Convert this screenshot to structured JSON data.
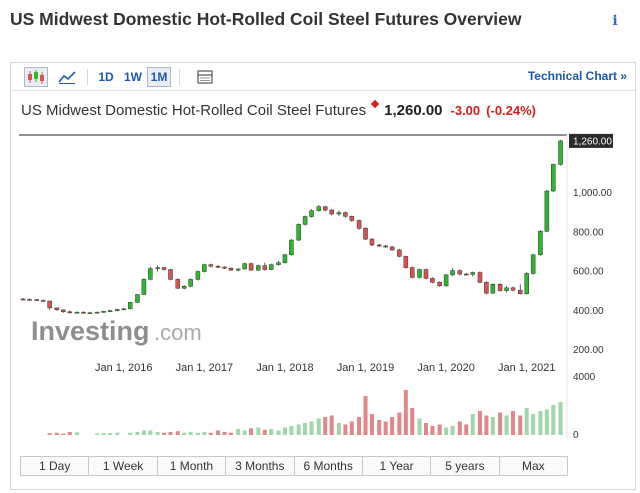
{
  "page": {
    "title": "US Midwest Domestic Hot-Rolled Coil Steel Futures Overview",
    "info_icon": "i"
  },
  "toolbar": {
    "candles_icon": "candlestick-chart-icon",
    "area_icon": "area-chart-icon",
    "intervals": [
      "1D",
      "1W",
      "1M"
    ],
    "active_interval": "1M",
    "panel_icon": "chart-panel-icon",
    "technical_link": "Technical Chart »"
  },
  "quote": {
    "name": "US Midwest Domestic Hot-Rolled Coil Steel Futures",
    "price": "1,260.00",
    "change": "-3.00",
    "change_pct": "(-0.24%)",
    "change_color": "#d91e18"
  },
  "watermark": {
    "brand": "Investing",
    "suffix": ".com"
  },
  "ranges": [
    "1 Day",
    "1 Week",
    "1 Month",
    "3 Months",
    "6 Months",
    "1 Year",
    "5 years",
    "Max"
  ],
  "colors": {
    "up": "#2eb82e",
    "down": "#d9534f",
    "vol_up": "#9fd6aa",
    "vol_down": "#e0878a",
    "link": "#1a5aa6"
  },
  "chart_data": {
    "type": "candlestick",
    "y_ticks": [
      "1,260.00",
      "1,000.00",
      "800.00",
      "600.00",
      "400.00",
      "200.00"
    ],
    "y_tick_values": [
      1260,
      1000,
      800,
      600,
      400,
      200
    ],
    "last_price_label": "1,260.00",
    "x_ticks": [
      "Jan 1, 2016",
      "Jan 1, 2017",
      "Jan 1, 2018",
      "Jan 1, 2019",
      "Jan 1, 2020",
      "Jan 1, 2021"
    ],
    "x_tick_years": [
      2016,
      2017,
      2018,
      2019,
      2020,
      2021
    ],
    "volume_ticks": [
      "4000",
      "0"
    ],
    "volume_max": 4000,
    "candles": [
      {
        "t": 2014.75,
        "o": 455,
        "h": 460,
        "l": 450,
        "c": 453,
        "v": 0
      },
      {
        "t": 2014.83,
        "o": 453,
        "h": 458,
        "l": 448,
        "c": 452,
        "v": 0
      },
      {
        "t": 2014.92,
        "o": 452,
        "h": 455,
        "l": 445,
        "c": 448,
        "v": 0
      },
      {
        "t": 2015.0,
        "o": 448,
        "h": 452,
        "l": 440,
        "c": 445,
        "v": 0
      },
      {
        "t": 2015.08,
        "o": 445,
        "h": 445,
        "l": 400,
        "c": 410,
        "v": 120
      },
      {
        "t": 2015.17,
        "o": 410,
        "h": 412,
        "l": 395,
        "c": 400,
        "v": 150
      },
      {
        "t": 2015.25,
        "o": 400,
        "h": 402,
        "l": 385,
        "c": 390,
        "v": 100
      },
      {
        "t": 2015.33,
        "o": 390,
        "h": 395,
        "l": 380,
        "c": 385,
        "v": 200
      },
      {
        "t": 2015.42,
        "o": 385,
        "h": 392,
        "l": 380,
        "c": 388,
        "v": 180
      },
      {
        "t": 2015.5,
        "o": 388,
        "h": 392,
        "l": 380,
        "c": 385,
        "v": 0
      },
      {
        "t": 2015.58,
        "o": 385,
        "h": 390,
        "l": 380,
        "c": 385,
        "v": 0
      },
      {
        "t": 2015.67,
        "o": 385,
        "h": 392,
        "l": 382,
        "c": 388,
        "v": 100
      },
      {
        "t": 2015.75,
        "o": 388,
        "h": 395,
        "l": 385,
        "c": 392,
        "v": 120
      },
      {
        "t": 2015.83,
        "o": 392,
        "h": 400,
        "l": 388,
        "c": 396,
        "v": 130
      },
      {
        "t": 2015.92,
        "o": 396,
        "h": 405,
        "l": 392,
        "c": 402,
        "v": 150
      },
      {
        "t": 2016.0,
        "o": 402,
        "h": 410,
        "l": 398,
        "c": 405,
        "v": 0
      },
      {
        "t": 2016.08,
        "o": 405,
        "h": 440,
        "l": 403,
        "c": 438,
        "v": 150
      },
      {
        "t": 2016.17,
        "o": 438,
        "h": 480,
        "l": 435,
        "c": 478,
        "v": 200
      },
      {
        "t": 2016.25,
        "o": 478,
        "h": 560,
        "l": 475,
        "c": 555,
        "v": 300
      },
      {
        "t": 2016.33,
        "o": 555,
        "h": 620,
        "l": 550,
        "c": 610,
        "v": 300
      },
      {
        "t": 2016.42,
        "o": 610,
        "h": 625,
        "l": 595,
        "c": 615,
        "v": 200
      },
      {
        "t": 2016.5,
        "o": 615,
        "h": 618,
        "l": 600,
        "c": 605,
        "v": 150
      },
      {
        "t": 2016.58,
        "o": 605,
        "h": 608,
        "l": 550,
        "c": 555,
        "v": 200
      },
      {
        "t": 2016.67,
        "o": 555,
        "h": 560,
        "l": 505,
        "c": 510,
        "v": 250
      },
      {
        "t": 2016.75,
        "o": 510,
        "h": 525,
        "l": 505,
        "c": 520,
        "v": 150
      },
      {
        "t": 2016.83,
        "o": 520,
        "h": 560,
        "l": 515,
        "c": 555,
        "v": 200
      },
      {
        "t": 2016.92,
        "o": 555,
        "h": 600,
        "l": 550,
        "c": 595,
        "v": 150
      },
      {
        "t": 2017.0,
        "o": 595,
        "h": 635,
        "l": 590,
        "c": 630,
        "v": 200
      },
      {
        "t": 2017.08,
        "o": 630,
        "h": 635,
        "l": 615,
        "c": 622,
        "v": 150
      },
      {
        "t": 2017.17,
        "o": 622,
        "h": 628,
        "l": 612,
        "c": 618,
        "v": 300
      },
      {
        "t": 2017.25,
        "o": 618,
        "h": 622,
        "l": 608,
        "c": 612,
        "v": 200
      },
      {
        "t": 2017.33,
        "o": 612,
        "h": 616,
        "l": 598,
        "c": 602,
        "v": 150
      },
      {
        "t": 2017.42,
        "o": 602,
        "h": 612,
        "l": 595,
        "c": 608,
        "v": 400
      },
      {
        "t": 2017.5,
        "o": 608,
        "h": 640,
        "l": 605,
        "c": 635,
        "v": 300
      },
      {
        "t": 2017.58,
        "o": 635,
        "h": 640,
        "l": 598,
        "c": 602,
        "v": 450
      },
      {
        "t": 2017.67,
        "o": 602,
        "h": 630,
        "l": 598,
        "c": 625,
        "v": 500
      },
      {
        "t": 2017.75,
        "o": 625,
        "h": 640,
        "l": 600,
        "c": 605,
        "v": 350
      },
      {
        "t": 2017.83,
        "o": 605,
        "h": 635,
        "l": 602,
        "c": 630,
        "v": 400
      },
      {
        "t": 2017.92,
        "o": 630,
        "h": 648,
        "l": 625,
        "c": 640,
        "v": 300
      },
      {
        "t": 2018.0,
        "o": 640,
        "h": 685,
        "l": 636,
        "c": 680,
        "v": 500
      },
      {
        "t": 2018.08,
        "o": 680,
        "h": 760,
        "l": 676,
        "c": 755,
        "v": 600
      },
      {
        "t": 2018.17,
        "o": 755,
        "h": 840,
        "l": 750,
        "c": 835,
        "v": 700
      },
      {
        "t": 2018.25,
        "o": 835,
        "h": 880,
        "l": 830,
        "c": 875,
        "v": 800
      },
      {
        "t": 2018.33,
        "o": 875,
        "h": 912,
        "l": 870,
        "c": 905,
        "v": 900
      },
      {
        "t": 2018.42,
        "o": 905,
        "h": 935,
        "l": 900,
        "c": 925,
        "v": 1100
      },
      {
        "t": 2018.5,
        "o": 925,
        "h": 930,
        "l": 900,
        "c": 908,
        "v": 1200
      },
      {
        "t": 2018.58,
        "o": 908,
        "h": 912,
        "l": 880,
        "c": 888,
        "v": 1300
      },
      {
        "t": 2018.67,
        "o": 888,
        "h": 905,
        "l": 878,
        "c": 895,
        "v": 800
      },
      {
        "t": 2018.75,
        "o": 895,
        "h": 900,
        "l": 870,
        "c": 876,
        "v": 700
      },
      {
        "t": 2018.83,
        "o": 876,
        "h": 880,
        "l": 848,
        "c": 855,
        "v": 900
      },
      {
        "t": 2018.92,
        "o": 855,
        "h": 860,
        "l": 808,
        "c": 815,
        "v": 1200
      },
      {
        "t": 2019.0,
        "o": 815,
        "h": 820,
        "l": 755,
        "c": 760,
        "v": 2600
      },
      {
        "t": 2019.08,
        "o": 760,
        "h": 765,
        "l": 725,
        "c": 730,
        "v": 1400
      },
      {
        "t": 2019.17,
        "o": 730,
        "h": 735,
        "l": 720,
        "c": 725,
        "v": 1000
      },
      {
        "t": 2019.25,
        "o": 725,
        "h": 730,
        "l": 715,
        "c": 720,
        "v": 900
      },
      {
        "t": 2019.33,
        "o": 720,
        "h": 725,
        "l": 700,
        "c": 705,
        "v": 1200
      },
      {
        "t": 2019.42,
        "o": 705,
        "h": 710,
        "l": 668,
        "c": 672,
        "v": 1500
      },
      {
        "t": 2019.5,
        "o": 672,
        "h": 676,
        "l": 610,
        "c": 615,
        "v": 3000
      },
      {
        "t": 2019.58,
        "o": 615,
        "h": 620,
        "l": 560,
        "c": 565,
        "v": 1800
      },
      {
        "t": 2019.67,
        "o": 565,
        "h": 610,
        "l": 560,
        "c": 605,
        "v": 1100
      },
      {
        "t": 2019.75,
        "o": 605,
        "h": 610,
        "l": 555,
        "c": 560,
        "v": 800
      },
      {
        "t": 2019.83,
        "o": 560,
        "h": 565,
        "l": 535,
        "c": 540,
        "v": 600
      },
      {
        "t": 2019.92,
        "o": 540,
        "h": 545,
        "l": 518,
        "c": 522,
        "v": 700
      },
      {
        "t": 2020.0,
        "o": 522,
        "h": 582,
        "l": 518,
        "c": 578,
        "v": 500
      },
      {
        "t": 2020.08,
        "o": 578,
        "h": 612,
        "l": 572,
        "c": 600,
        "v": 600
      },
      {
        "t": 2020.17,
        "o": 600,
        "h": 605,
        "l": 575,
        "c": 582,
        "v": 900
      },
      {
        "t": 2020.25,
        "o": 582,
        "h": 588,
        "l": 575,
        "c": 580,
        "v": 700
      },
      {
        "t": 2020.33,
        "o": 580,
        "h": 595,
        "l": 570,
        "c": 590,
        "v": 1400
      },
      {
        "t": 2020.42,
        "o": 590,
        "h": 596,
        "l": 535,
        "c": 540,
        "v": 1600
      },
      {
        "t": 2020.5,
        "o": 540,
        "h": 545,
        "l": 478,
        "c": 485,
        "v": 1300
      },
      {
        "t": 2020.58,
        "o": 485,
        "h": 535,
        "l": 480,
        "c": 530,
        "v": 1200
      },
      {
        "t": 2020.67,
        "o": 530,
        "h": 535,
        "l": 492,
        "c": 498,
        "v": 1500
      },
      {
        "t": 2020.75,
        "o": 498,
        "h": 520,
        "l": 488,
        "c": 512,
        "v": 1300
      },
      {
        "t": 2020.83,
        "o": 512,
        "h": 518,
        "l": 495,
        "c": 500,
        "v": 1600
      },
      {
        "t": 2020.92,
        "o": 500,
        "h": 530,
        "l": 478,
        "c": 482,
        "v": 1300
      },
      {
        "t": 2021.0,
        "o": 482,
        "h": 592,
        "l": 478,
        "c": 585,
        "v": 1800
      },
      {
        "t": 2021.08,
        "o": 585,
        "h": 685,
        "l": 580,
        "c": 680,
        "v": 1400
      },
      {
        "t": 2021.17,
        "o": 680,
        "h": 805,
        "l": 675,
        "c": 800,
        "v": 1600
      },
      {
        "t": 2021.25,
        "o": 800,
        "h": 1010,
        "l": 795,
        "c": 1005,
        "v": 1700
      },
      {
        "t": 2021.33,
        "o": 1005,
        "h": 1145,
        "l": 1000,
        "c": 1140,
        "v": 2000
      },
      {
        "t": 2021.42,
        "o": 1140,
        "h": 1265,
        "l": 1135,
        "c": 1260,
        "v": 2200
      }
    ]
  }
}
